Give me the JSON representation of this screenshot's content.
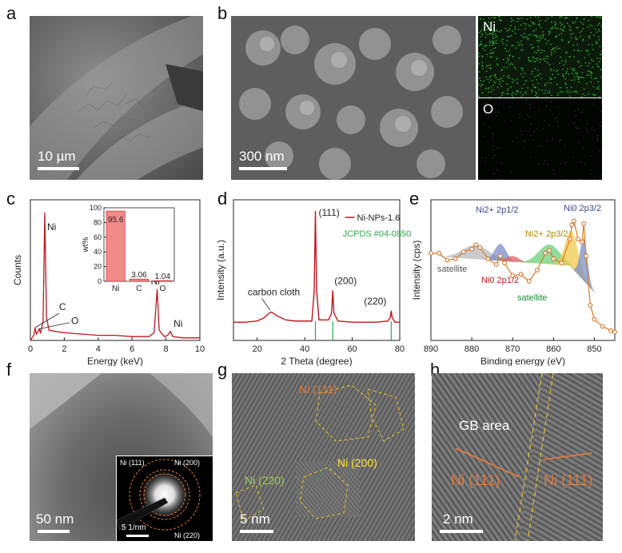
{
  "panels": {
    "a": {
      "letter": "a",
      "scale": "10 µm"
    },
    "b": {
      "letter": "b",
      "scale": "300 nm",
      "map1": "Ni",
      "map2": "O"
    },
    "c": {
      "letter": "c"
    },
    "d": {
      "letter": "d"
    },
    "e": {
      "letter": "e"
    },
    "f": {
      "letter": "f",
      "scale": "50 nm",
      "saed_scale": "5 1/nm",
      "rings": [
        "Ni (111)",
        "Ni (200)",
        "Ni (220)"
      ]
    },
    "g": {
      "letter": "g",
      "scale": "5 nm",
      "labels": [
        "Ni (111)",
        "Ni (200)",
        "Ni (220)"
      ]
    },
    "h": {
      "letter": "h",
      "scale": "2 nm",
      "gb": "GB area",
      "ni_left": "Ni (111)",
      "ni_right": "Ni (111)"
    }
  },
  "chart_data": [
    {
      "id": "c",
      "type": "line",
      "xlabel": "Energy (keV)",
      "ylabel": "Counts",
      "xlim": [
        0,
        10
      ],
      "xticks": [
        0,
        2,
        4,
        6,
        8,
        10
      ],
      "peaks": [
        {
          "label": "C",
          "x": 0.28
        },
        {
          "label": "O",
          "x": 0.52
        },
        {
          "label": "Ni",
          "x": 0.85
        },
        {
          "label": "Ni",
          "x": 7.48
        },
        {
          "label": "Ni",
          "x": 8.26
        }
      ],
      "series": [
        {
          "x": [
            0,
            0.2,
            0.28,
            0.35,
            0.45,
            0.52,
            0.6,
            0.75,
            0.85,
            0.95,
            1.1,
            1.5,
            2,
            3,
            4,
            5,
            6,
            7,
            7.3,
            7.48,
            7.6,
            7.9,
            8.1,
            8.26,
            8.4,
            9,
            10
          ],
          "y": [
            0,
            4,
            10,
            5,
            7,
            9,
            6,
            15,
            100,
            18,
            8,
            7,
            6,
            5,
            4,
            4,
            3,
            3,
            6,
            40,
            8,
            3,
            4,
            7,
            3,
            2,
            2
          ]
        }
      ],
      "inset": {
        "type": "bar",
        "ylabel": "wt%",
        "categories": [
          "Ni",
          "C",
          "O"
        ],
        "values": [
          95.6,
          3.06,
          1.04
        ],
        "value_labels": [
          "95.6",
          "3.06",
          "1.04"
        ],
        "ylim": [
          0,
          100
        ],
        "yticks": [
          0,
          20,
          40,
          60,
          80,
          100
        ]
      }
    },
    {
      "id": "d",
      "type": "line",
      "xlabel": "2 Theta (degree)",
      "ylabel": "Intensity (a.u.)",
      "xlim": [
        10,
        80
      ],
      "xticks": [
        20,
        40,
        60,
        80
      ],
      "legend": [
        "Ni-NPs-1.6",
        "JCPDS #04-0850"
      ],
      "annotations": [
        "(111)",
        "(200)",
        "(220)",
        "carbon cloth"
      ],
      "reference_lines": [
        44.5,
        51.8,
        76.4
      ],
      "series": [
        {
          "name": "Ni-NPs-1.6",
          "x": [
            10,
            15,
            20,
            23,
            25,
            26,
            28,
            32,
            36,
            40,
            43,
            44,
            44.5,
            45,
            46,
            50,
            51.3,
            51.8,
            52.3,
            54,
            60,
            70,
            75,
            76,
            76.4,
            76.8,
            78,
            80
          ],
          "y": [
            2,
            2,
            3,
            6,
            10,
            11,
            8,
            4,
            3,
            3,
            3,
            30,
            100,
            30,
            4,
            4,
            10,
            30,
            10,
            3,
            2,
            2,
            3,
            6,
            12,
            6,
            2,
            2
          ]
        }
      ]
    },
    {
      "id": "e",
      "type": "line",
      "xlabel": "Binding energy (eV)",
      "ylabel": "Intensity (cps)",
      "xlim": [
        890,
        845
      ],
      "xticks": [
        890,
        880,
        870,
        860,
        850
      ],
      "annotations": [
        "Ni2+ 2p1/2",
        "satellite",
        "Ni0 2p1/2",
        "Ni0 2p3/2",
        "Ni2+ 2p3/2",
        "satellite"
      ],
      "series": [
        {
          "name": "data",
          "x": [
            890,
            888,
            886,
            884,
            882,
            880,
            879,
            878,
            876,
            874,
            873,
            872,
            870,
            868,
            866,
            864,
            862,
            861,
            860,
            858,
            856,
            855.5,
            855,
            854,
            853,
            852.6,
            852,
            851,
            850,
            848,
            846,
            845
          ],
          "y": [
            62,
            62,
            57,
            58,
            63,
            65,
            68,
            66,
            58,
            54,
            60,
            55,
            46,
            47,
            42,
            50,
            62,
            64,
            58,
            55,
            72,
            82,
            85,
            72,
            70,
            83,
            60,
            25,
            15,
            10,
            7,
            6
          ]
        }
      ]
    }
  ]
}
